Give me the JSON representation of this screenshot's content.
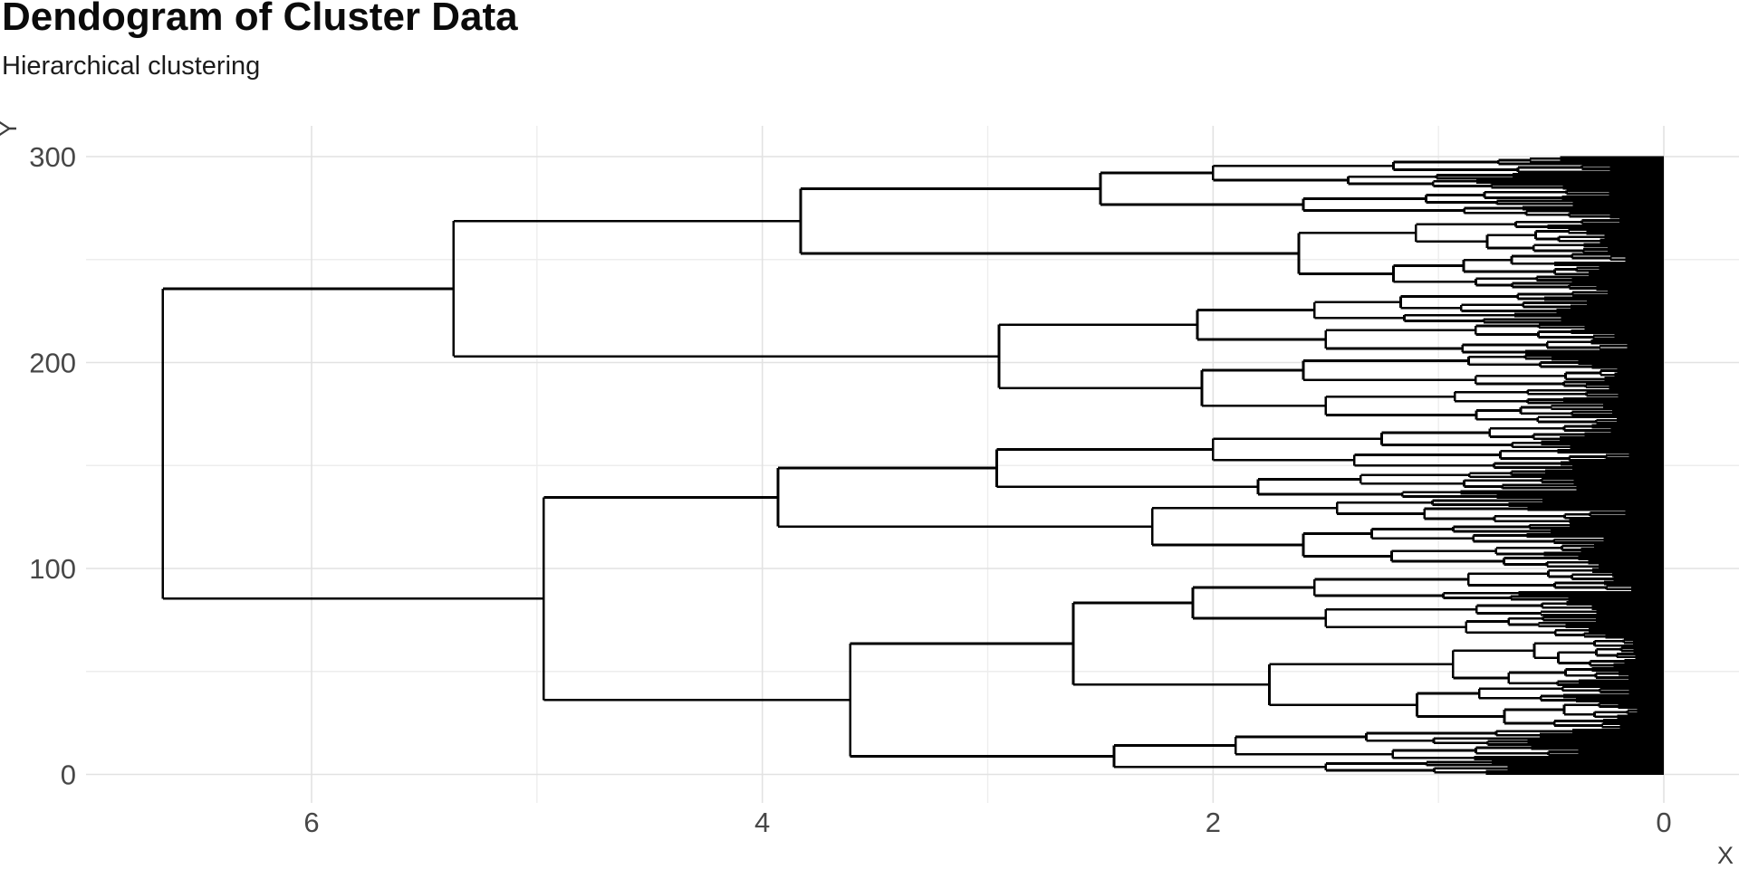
{
  "header": {
    "title": "Dendogram of Cluster Data",
    "subtitle": "Hierarchical clustering"
  },
  "chart_data": {
    "type": "dendrogram",
    "title": "Dendogram of Cluster Data",
    "subtitle": "Hierarchical clustering",
    "orientation": "horizontal, root at left, leaves at distance 0 on the right",
    "n_leaves": 300,
    "x_axis": {
      "label": "X",
      "major_ticks": [
        6,
        4,
        2,
        0
      ],
      "minor_gridlines": [
        5,
        3,
        1
      ],
      "range_shown": [
        7.0,
        -0.33
      ]
    },
    "y_axis": {
      "label": "Y",
      "major_ticks": [
        300,
        200,
        100,
        0
      ],
      "minor_gridlines": [
        250,
        150,
        50
      ],
      "range_shown": [
        -15,
        315
      ]
    },
    "grid": "major and minor gridlines, light gray on white, no panel border",
    "root_merge_distance": 6.66,
    "skeleton_note": "nested merge tree; d = merge distance read from x axis; children ordered [lower-y, upper-y]; n = generated subtree leaf count with top merge distance d",
    "skeleton": {
      "d": 6.66,
      "children": [
        {
          "d": 4.97,
          "children": [
            {
              "d": 3.61,
              "children": [
                {
                  "d": 2.44,
                  "children": [
                    {
                      "n": 7,
                      "d": 1.5
                    },
                    {
                      "n": 15,
                      "d": 1.9
                    }
                  ]
                },
                {
                  "d": 2.62,
                  "children": [
                    {
                      "n": 44,
                      "d": 1.75
                    },
                    {
                      "d": 2.09,
                      "children": [
                        {
                          "n": 18,
                          "d": 1.5
                        },
                        {
                          "n": 16,
                          "d": 1.55
                        }
                      ]
                    }
                  ]
                }
              ]
            },
            {
              "d": 3.93,
              "children": [
                {
                  "d": 2.27,
                  "children": [
                    {
                      "n": 22,
                      "d": 1.6
                    },
                    {
                      "n": 12,
                      "d": 1.45
                    }
                  ]
                },
                {
                  "d": 2.96,
                  "children": [
                    {
                      "n": 14,
                      "d": 1.8
                    },
                    {
                      "n": 22,
                      "d": 2.0
                    }
                  ]
                }
              ]
            }
          ]
        },
        {
          "d": 5.37,
          "children": [
            {
              "d": 2.95,
              "children": [
                {
                  "d": 2.05,
                  "children": [
                    {
                      "n": 17,
                      "d": 1.5
                    },
                    {
                      "n": 17,
                      "d": 1.6
                    }
                  ]
                },
                {
                  "d": 2.07,
                  "children": [
                    {
                      "n": 15,
                      "d": 1.5
                    },
                    {
                      "n": 16,
                      "d": 1.55
                    }
                  ]
                }
              ]
            },
            {
              "d": 3.83,
              "children": [
                {
                  "d": 1.62,
                  "children": [
                    {
                      "n": 18,
                      "d": 1.2
                    },
                    {
                      "n": 17,
                      "d": 1.1
                    }
                  ]
                },
                {
                  "d": 2.5,
                  "children": [
                    {
                      "n": 14,
                      "d": 1.6
                    },
                    {
                      "d": 2.0,
                      "children": [
                        {
                          "n": 8,
                          "d": 1.4
                        },
                        {
                          "n": 8,
                          "d": 1.2
                        }
                      ]
                    }
                  ]
                }
              ]
            }
          ]
        }
      ]
    },
    "seed": 11,
    "colors": {
      "line": "#000000",
      "grid_major": "#e2e2e2",
      "grid_minor": "#ededed",
      "tick_text": "#474747",
      "axis_title_text": "#3f3f3f",
      "background": "#ffffff"
    }
  }
}
